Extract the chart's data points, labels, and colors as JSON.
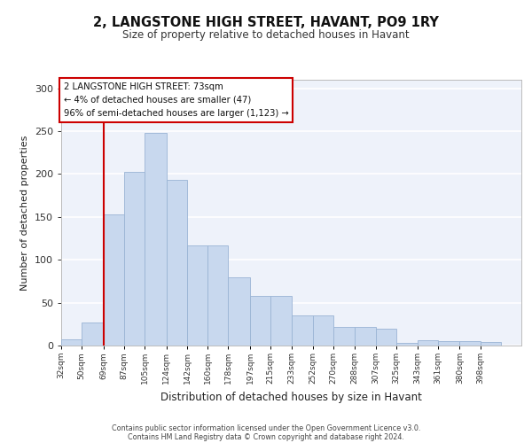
{
  "title_line1": "2, LANGSTONE HIGH STREET, HAVANT, PO9 1RY",
  "title_line2": "Size of property relative to detached houses in Havant",
  "xlabel": "Distribution of detached houses by size in Havant",
  "ylabel": "Number of detached properties",
  "bin_labels": [
    "32sqm",
    "50sqm",
    "69sqm",
    "87sqm",
    "105sqm",
    "124sqm",
    "142sqm",
    "160sqm",
    "178sqm",
    "197sqm",
    "215sqm",
    "233sqm",
    "252sqm",
    "270sqm",
    "288sqm",
    "307sqm",
    "325sqm",
    "343sqm",
    "361sqm",
    "380sqm",
    "398sqm"
  ],
  "bar_values": [
    7,
    27,
    153,
    203,
    248,
    193,
    117,
    117,
    80,
    58,
    58,
    35,
    35,
    22,
    22,
    20,
    3,
    6,
    5,
    5,
    4
  ],
  "bar_color": "#c8d8ee",
  "bar_edge_color": "#9ab4d4",
  "red_line_label": "2 LANGSTONE HIGH STREET: 73sqm",
  "annotation_line2": "← 4% of detached houses are smaller (47)",
  "annotation_line3": "96% of semi-detached houses are larger (1,123) →",
  "ylim": [
    0,
    310
  ],
  "yticks": [
    0,
    50,
    100,
    150,
    200,
    250,
    300
  ],
  "bg_color": "#eef2fa",
  "footer1": "Contains HM Land Registry data © Crown copyright and database right 2024.",
  "footer2": "Contains public sector information licensed under the Open Government Licence v3.0."
}
